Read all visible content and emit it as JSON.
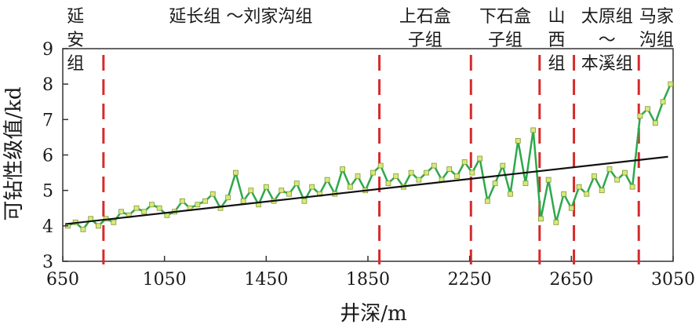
{
  "chart_data": {
    "type": "line",
    "xlabel": "井深/m",
    "ylabel": "可钻性级值/kd",
    "xlim": [
      650,
      3050
    ],
    "ylim": [
      3,
      9
    ],
    "x_ticks": [
      650,
      1050,
      1450,
      1850,
      2250,
      2650,
      3050
    ],
    "y_ticks": [
      3,
      4,
      5,
      6,
      7,
      8,
      9
    ],
    "grid": false,
    "legend": "none",
    "colors": {
      "data": "#2ea84b",
      "marker": "#d9e87a",
      "trend": "#111111",
      "boundary": "#d62b2b"
    },
    "boundaries": [
      810,
      1895,
      2255,
      2525,
      2660,
      2915
    ],
    "formations": [
      {
        "lines": [
          "延",
          "安",
          "组"
        ],
        "x": 700
      },
      {
        "lines": [
          "延长组 ～刘家沟组"
        ],
        "x": 1350
      },
      {
        "lines": [
          "上石盒",
          "子组"
        ],
        "x": 2075
      },
      {
        "lines": [
          "下石盒",
          "子组"
        ],
        "x": 2390
      },
      {
        "lines": [
          "山",
          "西",
          "组"
        ],
        "x": 2592
      },
      {
        "lines": [
          "太原组",
          "～",
          "本溪组"
        ],
        "x": 2790
      },
      {
        "lines": [
          "马家",
          "沟组"
        ],
        "x": 2985
      }
    ],
    "series": [
      {
        "type": "line",
        "x": [
          670,
          700,
          730,
          760,
          790,
          820,
          850,
          880,
          910,
          940,
          970,
          1000,
          1030,
          1060,
          1090,
          1120,
          1150,
          1180,
          1210,
          1240,
          1270,
          1300,
          1330,
          1360,
          1390,
          1420,
          1450,
          1480,
          1510,
          1540,
          1570,
          1600,
          1630,
          1660,
          1690,
          1720,
          1750,
          1780,
          1810,
          1840,
          1870,
          1900,
          1930,
          1960,
          1990,
          2020,
          2050,
          2080,
          2110,
          2140,
          2170,
          2200,
          2230,
          2260,
          2290,
          2320,
          2350,
          2380,
          2410,
          2440,
          2470,
          2500,
          2530,
          2560,
          2590,
          2620,
          2650,
          2680,
          2710,
          2740,
          2770,
          2800,
          2830,
          2860,
          2890,
          2920,
          2950,
          2980,
          3010,
          3040
        ],
        "y": [
          4.0,
          4.1,
          3.9,
          4.2,
          4.0,
          4.2,
          4.1,
          4.4,
          4.3,
          4.5,
          4.4,
          4.6,
          4.5,
          4.3,
          4.4,
          4.7,
          4.5,
          4.6,
          4.7,
          4.9,
          4.5,
          4.8,
          5.5,
          4.7,
          5.0,
          4.6,
          5.1,
          4.7,
          5.0,
          4.9,
          5.2,
          4.7,
          5.1,
          4.9,
          5.3,
          4.9,
          5.6,
          5.1,
          5.4,
          5.0,
          5.5,
          5.7,
          5.2,
          5.4,
          5.1,
          5.5,
          5.3,
          5.5,
          5.7,
          5.3,
          5.6,
          5.4,
          5.8,
          5.5,
          5.9,
          4.7,
          5.2,
          5.7,
          4.9,
          6.4,
          5.2,
          6.7,
          4.2,
          5.3,
          4.1,
          4.9,
          4.5,
          5.1,
          4.9,
          5.4,
          5.0,
          5.6,
          5.3,
          5.5,
          5.1,
          7.1,
          7.3,
          6.9,
          7.5,
          8.0
        ]
      },
      {
        "type": "trend",
        "x": [
          660,
          3030
        ],
        "y": [
          4.05,
          5.95
        ]
      }
    ]
  }
}
